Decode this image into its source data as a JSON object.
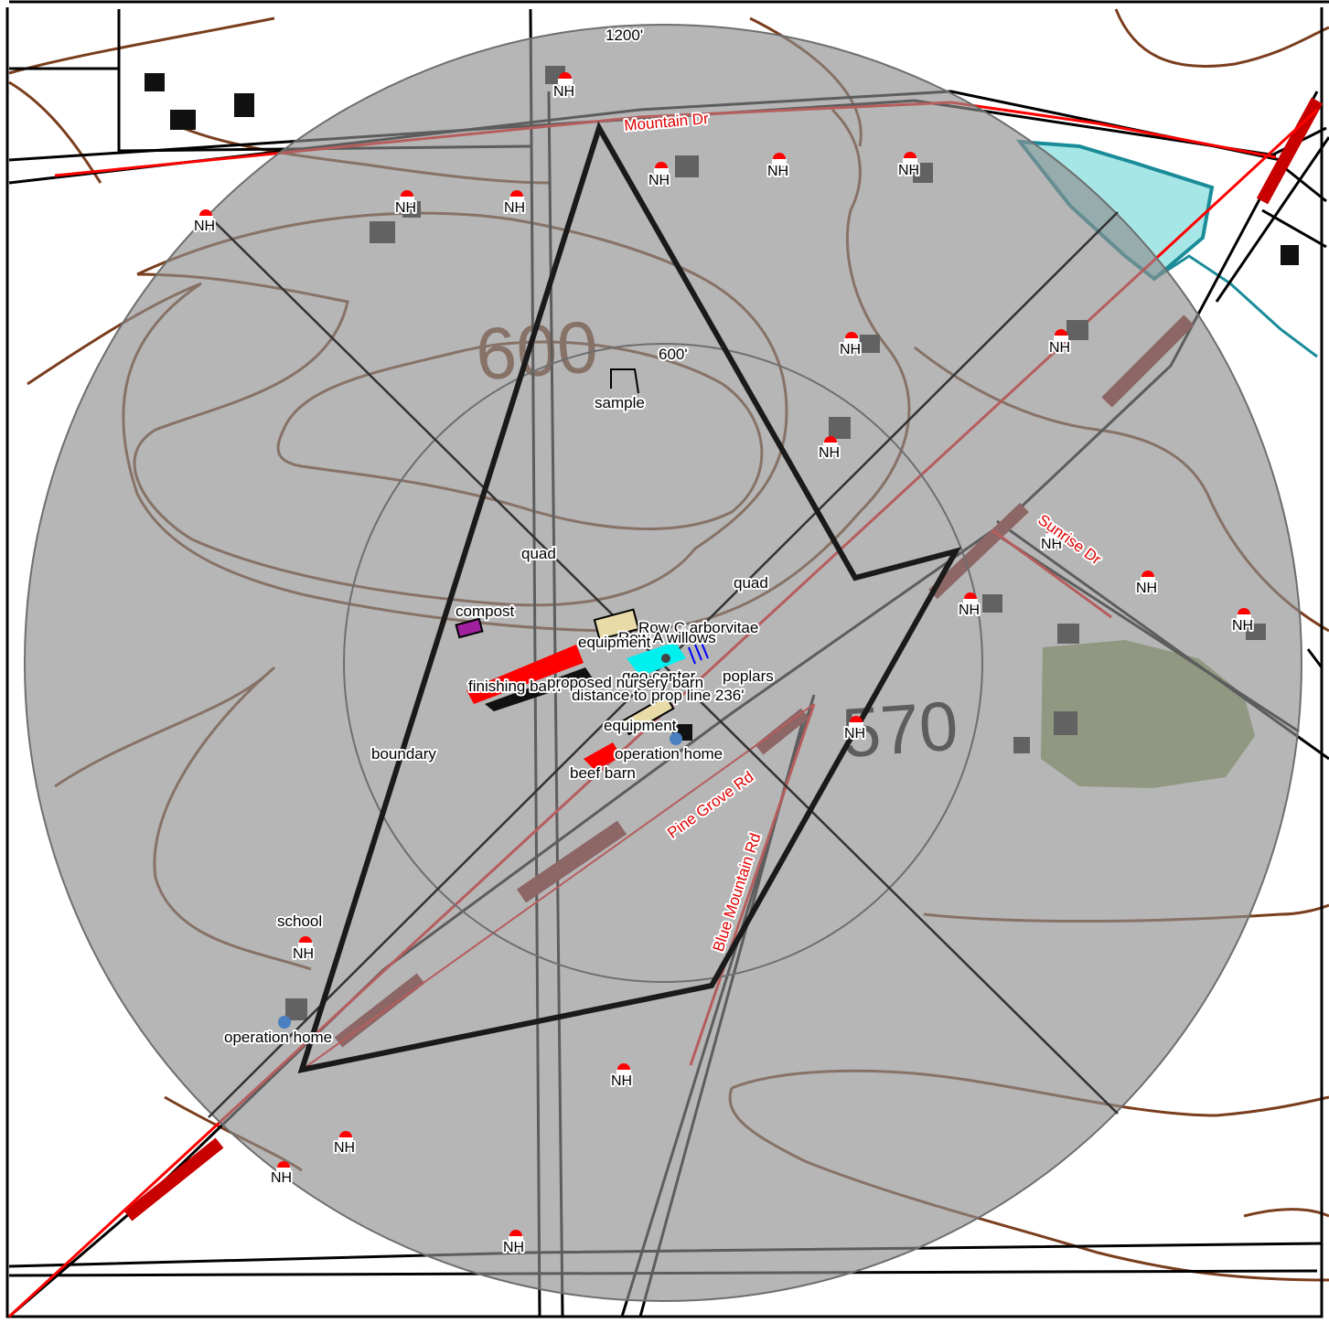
{
  "rings": {
    "outer": "1200'",
    "inner": "600'"
  },
  "contours": {
    "label_600": "600",
    "label_570": "570"
  },
  "roads": {
    "mountain": "Mountain Dr",
    "sunrise": "Sunrise Dr",
    "pine_grove": "Pine Grove Rd",
    "blue_mountain": "Blue Mountain Rd"
  },
  "features": {
    "sample": "sample",
    "quad": "quad",
    "compost": "compost",
    "row_arborvitae": "Row C arborvitae",
    "row_willows": "Row A willows",
    "equipment": "equipment",
    "geo_center": "geo center",
    "poplars": "poplars",
    "finishing_barn": "finishing barn",
    "proposed_nursery_barn": "proposed nursery barn",
    "distance": "distance to prop line 236'",
    "operation_home": "operation home",
    "beef_barn": "beef barn",
    "boundary": "boundary",
    "school": "school"
  },
  "nh_label": "NH",
  "colors": {
    "buffer": "#8f8f8f",
    "contour": "#7a3e1e",
    "road": "#ff0000",
    "water": "#5fd2d2",
    "field": "#93a86a",
    "compost": "#a020a0",
    "nh_marker": "#ff0000",
    "home_marker": "#4a7fc1"
  },
  "icons": [
    "nh-marker-icon",
    "operation-home-icon",
    "building-icon"
  ]
}
